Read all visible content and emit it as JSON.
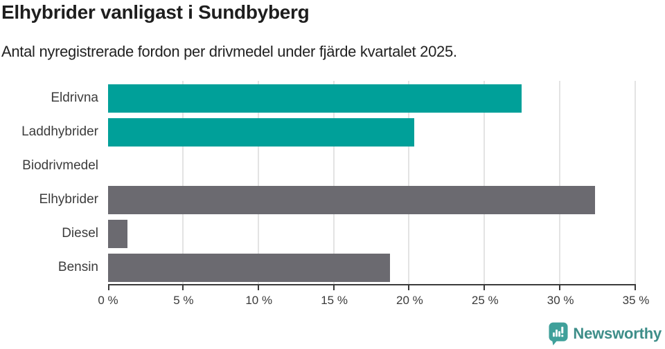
{
  "header": {
    "title": "Elhybrider vanligast i Sundbyberg",
    "subtitle": "Antal nyregistrerade fordon per drivmedel under fjärde kvartalet 2025."
  },
  "chart_data": {
    "type": "bar",
    "orientation": "horizontal",
    "title": "Elhybrider vanligast i Sundbyberg",
    "subtitle": "Antal nyregistrerade fordon per drivmedel under fjärde kvartalet 2025.",
    "categories": [
      "Eldrivna",
      "Laddhybrider",
      "Biodrivmedel",
      "Elhybrider",
      "Diesel",
      "Bensin"
    ],
    "values": [
      27.4,
      20.3,
      0,
      32.3,
      1.3,
      18.7
    ],
    "bar_colors": [
      "#00A099",
      "#00A099",
      "#00A099",
      "#6B6A70",
      "#6B6A70",
      "#6B6A70"
    ],
    "xlabel": "",
    "ylabel": "",
    "xlim": [
      0,
      35
    ],
    "x_ticks": [
      0,
      5,
      10,
      15,
      20,
      25,
      30,
      35
    ],
    "x_tick_labels": [
      "0 %",
      "5 %",
      "10 %",
      "15 %",
      "20 %",
      "25 %",
      "30 %",
      "35 %"
    ],
    "grid": "vertical-gridlines-on",
    "legend": "none",
    "unit": "%"
  },
  "colors": {
    "accent_teal": "#00A099",
    "bar_gray": "#6B6A70",
    "axis": "#3A3A3A",
    "gridline": "#E3E3E3",
    "text_dark": "#1E1E1E",
    "label_gray": "#3C3C3C",
    "logo_teal": "#3E8E89"
  },
  "footer": {
    "logo_text": "Newsworthy",
    "logo_icon": "newsworthy-speech-bubble-chart-icon"
  }
}
